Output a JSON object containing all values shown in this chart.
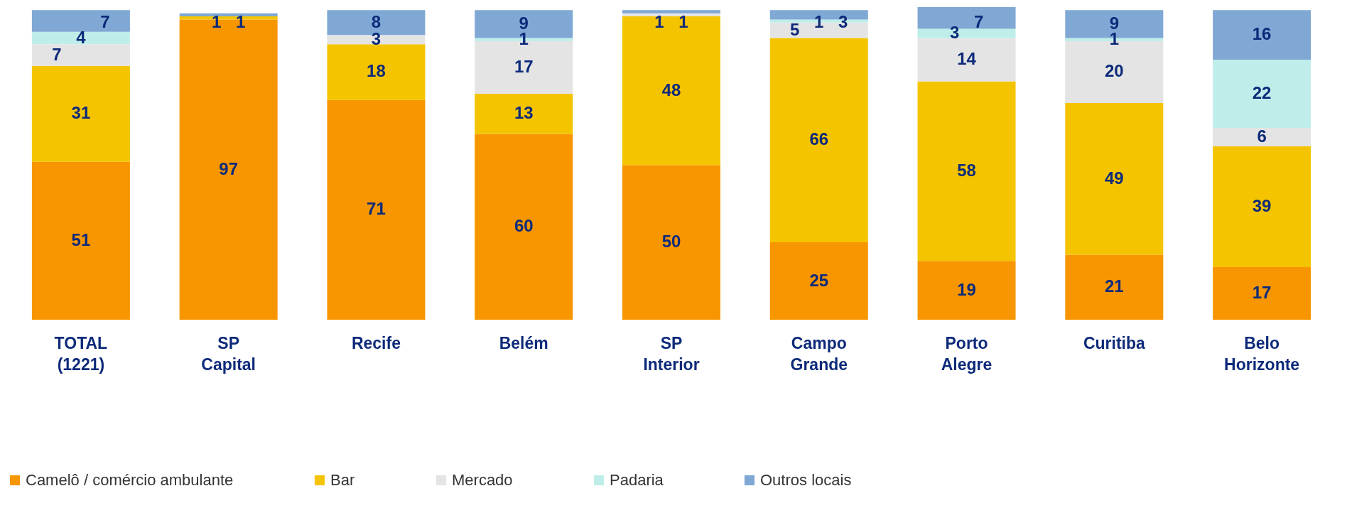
{
  "chart_data": {
    "type": "bar",
    "stacked": true,
    "data_labels": true,
    "legend": "bottom",
    "grid": false,
    "categories": [
      "TOTAL (1221)",
      "SP Capital",
      "Recife",
      "Belém",
      "SP Interior",
      "Campo Grande",
      "Porto Alegre",
      "Curitiba",
      "Belo Horizonte"
    ],
    "series": [
      {
        "name": "Camelô / comércio ambulante",
        "color": "#f79600",
        "values": [
          51,
          97,
          71,
          60,
          50,
          25,
          19,
          21,
          17
        ]
      },
      {
        "name": "Bar",
        "color": "#f5c400",
        "values": [
          31,
          1,
          18,
          13,
          48,
          66,
          58,
          49,
          39
        ]
      },
      {
        "name": "Mercado",
        "color": "#e4e4e4",
        "values": [
          7,
          null,
          3,
          17,
          1,
          5,
          14,
          20,
          6
        ]
      },
      {
        "name": "Padaria",
        "color": "#bfeeea",
        "values": [
          4,
          null,
          null,
          1,
          null,
          1,
          3,
          1,
          22
        ]
      },
      {
        "name": "Outros locais",
        "color": "#7fa8d4",
        "values": [
          7,
          1,
          8,
          9,
          1,
          3,
          7,
          9,
          16
        ]
      }
    ]
  }
}
